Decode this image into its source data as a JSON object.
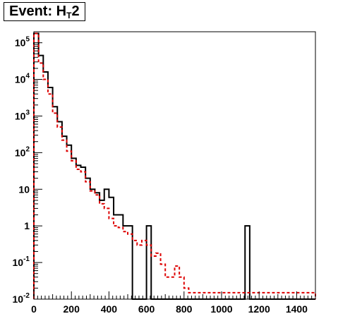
{
  "title": {
    "prefix": "Event: H",
    "sub": "T",
    "suffix": "2"
  },
  "chart_data": {
    "type": "step-histogram",
    "x_bin_width": 25,
    "xlim": [
      0,
      1500
    ],
    "ylim": [
      0.01,
      200000
    ],
    "y_scale": "log",
    "grid": false,
    "x_ticks": [
      {
        "value": 0,
        "label": "0"
      },
      {
        "value": 200,
        "label": "200"
      },
      {
        "value": 400,
        "label": "400"
      },
      {
        "value": 600,
        "label": "600"
      },
      {
        "value": 800,
        "label": "800"
      },
      {
        "value": 1000,
        "label": "1000"
      },
      {
        "value": 1200,
        "label": "1200"
      },
      {
        "value": 1400,
        "label": "1400"
      }
    ],
    "y_ticks": [
      {
        "value": 0.01,
        "base": "10",
        "exp": "-2"
      },
      {
        "value": 0.1,
        "base": "10",
        "exp": "-1"
      },
      {
        "value": 1,
        "base": "1",
        "exp": ""
      },
      {
        "value": 10,
        "base": "10",
        "exp": ""
      },
      {
        "value": 100,
        "base": "10",
        "exp": "2"
      },
      {
        "value": 1000,
        "base": "10",
        "exp": "3"
      },
      {
        "value": 10000,
        "base": "10",
        "exp": "4"
      },
      {
        "value": 100000,
        "base": "10",
        "exp": "5"
      }
    ],
    "series": [
      {
        "style": "solid",
        "color": "#000000",
        "values": [
          180000,
          45000,
          16000,
          6000,
          1800,
          700,
          280,
          160,
          70,
          45,
          40,
          20,
          10,
          8,
          5,
          10,
          6,
          2,
          2,
          1,
          1,
          0,
          0,
          0,
          1,
          0,
          0,
          0,
          0,
          0,
          0,
          0,
          0,
          0,
          0,
          0,
          0,
          0,
          0,
          0,
          0,
          0,
          0,
          0,
          0,
          1,
          0,
          0,
          0,
          0,
          0,
          0,
          0,
          0,
          0,
          0,
          0,
          0,
          0,
          0
        ]
      },
      {
        "style": "dashed",
        "color": "#dd0000",
        "values": [
          180000,
          28000,
          10000,
          4000,
          1200,
          500,
          220,
          110,
          60,
          35,
          30,
          16,
          9,
          7,
          4,
          3,
          1.6,
          1.0,
          0.9,
          0.7,
          0.6,
          0.4,
          0.3,
          0.4,
          0.3,
          0.15,
          0.18,
          0.09,
          0.04,
          0.04,
          0.08,
          0.04,
          0.02,
          0.015,
          0.015,
          0.015,
          0.015,
          0.015,
          0.015,
          0.015,
          0.015,
          0.015,
          0.015,
          0.015,
          0.015,
          0.015,
          0.015,
          0.015,
          0.015,
          0.015,
          0.015,
          0.015,
          0.015,
          0.015,
          0.015,
          0.015,
          0.015,
          0.015,
          0.015,
          0.015
        ]
      }
    ]
  }
}
